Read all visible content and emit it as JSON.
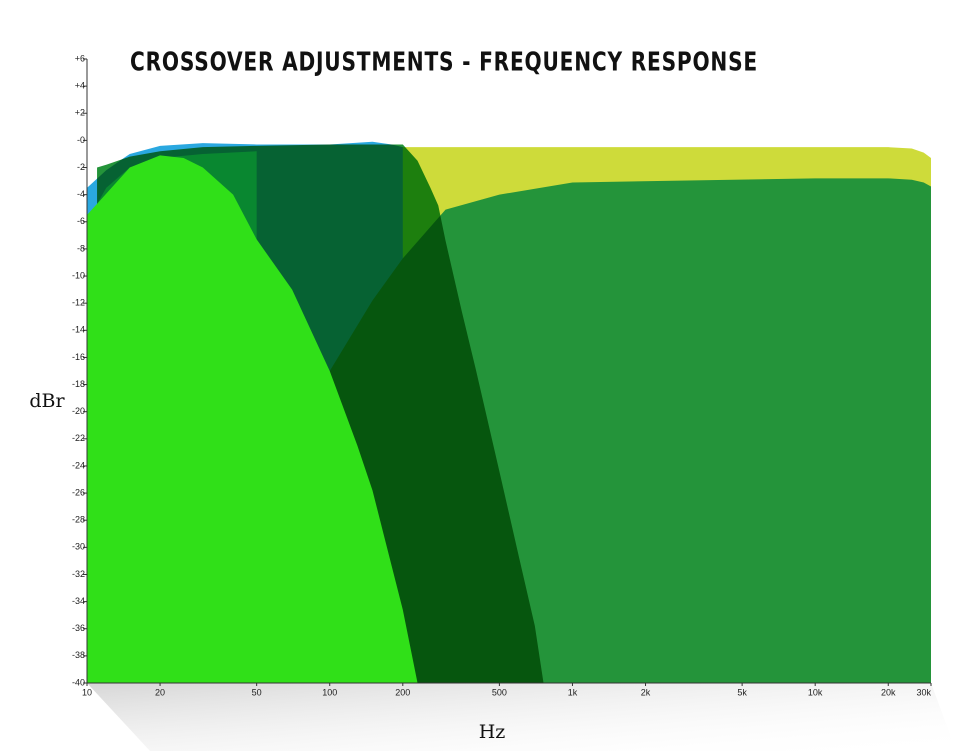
{
  "chart_data": {
    "type": "area",
    "title": "CROSSOVER ADJUSTMENTS - FREQUENCY RESPONSE",
    "x_label": "Hz",
    "y_label": "dBr",
    "log_x": true,
    "xlim": [
      10,
      30000
    ],
    "ylim": [
      -40,
      6
    ],
    "xticks": [
      10,
      20,
      50,
      100,
      200,
      500,
      {
        "value": 1000,
        "label": "1k"
      },
      {
        "value": 2000,
        "label": "2k"
      },
      {
        "value": 5000,
        "label": "5k"
      },
      {
        "value": 10000,
        "label": "10k"
      },
      {
        "value": 20000,
        "label": "20k"
      },
      {
        "value": 30000,
        "label": "30k"
      }
    ],
    "yticks": [
      {
        "value": 6,
        "label": "+6"
      },
      {
        "value": 4,
        "label": "+4"
      },
      {
        "value": 2,
        "label": "+2"
      },
      {
        "value": 0,
        "label": "-0"
      },
      -2,
      -4,
      -6,
      -8,
      -10,
      -12,
      -14,
      -16,
      -18,
      -20,
      -22,
      -24,
      -26,
      -28,
      -30,
      -32,
      -34,
      -36,
      -38,
      -40
    ],
    "series": [
      {
        "color": "#cedb3a",
        "blend": "normal",
        "x": [
          150,
          300,
          500,
          1000,
          5000,
          20000,
          25000,
          28000,
          30000
        ],
        "values": [
          -0.5,
          -0.5,
          -0.5,
          -0.5,
          -0.5,
          -0.5,
          -0.6,
          -0.9,
          -1.3
        ]
      },
      {
        "color": "#2aa8e0",
        "blend": "normal",
        "x": [
          10,
          12,
          15,
          20,
          30,
          50,
          100,
          150,
          180,
          200
        ],
        "values": [
          -3.5,
          -2.2,
          -1,
          -0.4,
          -0.2,
          -0.3,
          -0.3,
          -0.1,
          -0.3,
          -0.5
        ]
      },
      {
        "color": "#3ee8d0",
        "blend": "normal",
        "x": [
          10,
          12,
          15,
          20,
          30,
          50
        ],
        "values": [
          -6,
          -3.5,
          -2,
          -1.3,
          -1,
          -0.8
        ]
      },
      {
        "color": "#24943a",
        "blend": "normal",
        "x": [
          30,
          40,
          50,
          70,
          100,
          150,
          200,
          300,
          500,
          1000,
          10000,
          20000,
          25000,
          28000,
          30000
        ],
        "values": [
          -40,
          -33,
          -28,
          -22,
          -17,
          -11.8,
          -8.7,
          -5.1,
          -4,
          -3.1,
          -2.8,
          -2.8,
          -2.9,
          -3.1,
          -3.4
        ]
      },
      {
        "color": "#24943a",
        "blend": "multiply",
        "x": [
          11,
          12,
          15,
          20,
          30,
          50,
          100,
          200,
          230,
          260,
          280,
          300,
          350,
          400,
          500,
          600,
          700,
          760
        ],
        "values": [
          -2,
          -1.8,
          -1.2,
          -0.8,
          -0.5,
          -0.4,
          -0.3,
          -0.3,
          -1.5,
          -3.5,
          -4.8,
          -7.4,
          -12.6,
          -16.9,
          -24.4,
          -30.6,
          -35.8,
          -40
        ]
      },
      {
        "color": "#30e018",
        "blend": "normal",
        "x": [
          10,
          15,
          20,
          25,
          30,
          40,
          50,
          70,
          100,
          130,
          150,
          200,
          230
        ],
        "values": [
          -5.5,
          -2,
          -1.1,
          -1.3,
          -2,
          -4,
          -7.3,
          -11,
          -17,
          -22.5,
          -25.8,
          -34.6,
          -40
        ]
      }
    ]
  }
}
